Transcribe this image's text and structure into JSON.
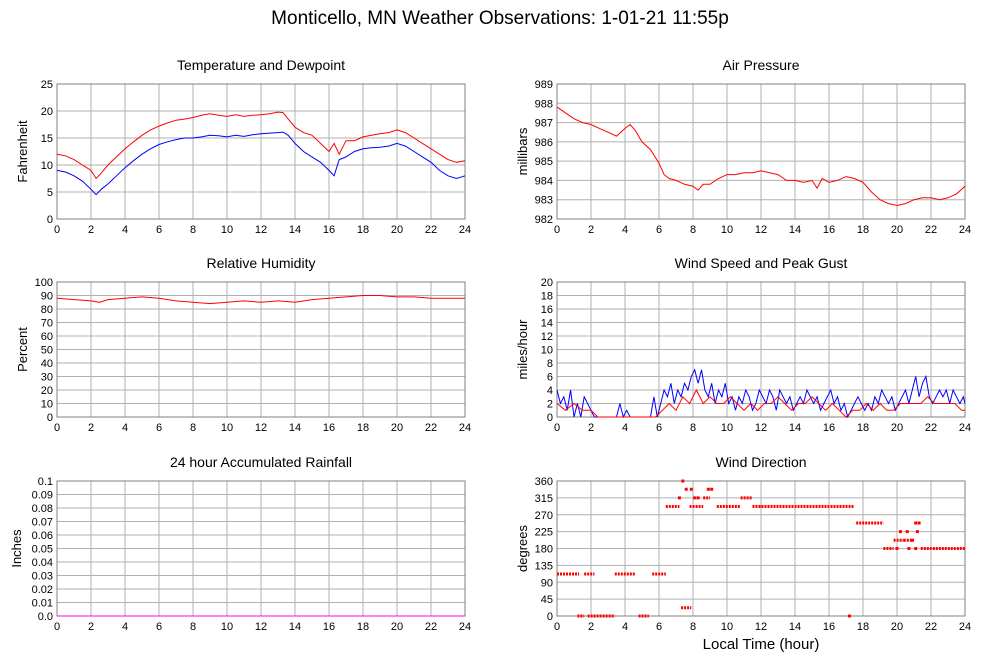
{
  "title": "Monticello, MN Weather Observations: 1-01-21 11:55p",
  "xlabel": "Local Time (hour)",
  "colors": {
    "red": "#ff0000",
    "blue": "#0000ff",
    "grid": "#b0b0b0"
  },
  "chart_data": [
    {
      "id": "temp",
      "type": "line",
      "title": "Temperature and Dewpoint",
      "ylabel": "Fahrenheit",
      "xlim": [
        0,
        24
      ],
      "ylim": [
        0,
        25
      ],
      "xticks": [
        0,
        2,
        4,
        6,
        8,
        10,
        12,
        14,
        16,
        18,
        20,
        22,
        24
      ],
      "yticks": [
        0,
        5,
        10,
        15,
        20,
        25
      ],
      "grid": true,
      "series": [
        {
          "color": "#ff0000",
          "x": [
            0,
            0.5,
            1,
            1.5,
            2,
            2.3,
            2.6,
            3,
            3.5,
            4,
            4.5,
            5,
            5.5,
            6,
            6.5,
            7,
            7.5,
            8,
            8.5,
            9,
            9.5,
            10,
            10.5,
            11,
            11.5,
            12,
            12.5,
            13,
            13.3,
            13.6,
            14,
            14.5,
            15,
            15.5,
            16,
            16.3,
            16.6,
            17,
            17.5,
            18,
            18.5,
            19,
            19.5,
            20,
            20.5,
            21,
            21.5,
            22,
            22.5,
            23,
            23.5,
            24
          ],
          "y": [
            12,
            11.7,
            11,
            10,
            9,
            7.5,
            8.5,
            10,
            11.5,
            13,
            14.3,
            15.5,
            16.5,
            17.2,
            17.8,
            18.3,
            18.5,
            18.8,
            19.2,
            19.5,
            19.2,
            19,
            19.3,
            19,
            19.2,
            19.3,
            19.5,
            19.8,
            19.7,
            18.5,
            17,
            16,
            15.5,
            14,
            12.5,
            14,
            12,
            14.5,
            14.5,
            15.2,
            15.5,
            15.8,
            16,
            16.5,
            16,
            15,
            14,
            13,
            12,
            11,
            10.5,
            10.8
          ]
        },
        {
          "color": "#0000ff",
          "x": [
            0,
            0.5,
            1,
            1.5,
            2,
            2.3,
            2.6,
            3,
            3.5,
            4,
            4.5,
            5,
            5.5,
            6,
            6.5,
            7,
            7.5,
            8,
            8.5,
            9,
            9.5,
            10,
            10.5,
            11,
            11.5,
            12,
            12.5,
            13,
            13.3,
            13.6,
            14,
            14.5,
            15,
            15.5,
            16,
            16.3,
            16.6,
            17,
            17.5,
            18,
            18.5,
            19,
            19.5,
            20,
            20.5,
            21,
            21.5,
            22,
            22.5,
            23,
            23.5,
            24
          ],
          "y": [
            9,
            8.7,
            8,
            7,
            5.5,
            4.5,
            5.5,
            6.5,
            8,
            9.5,
            10.8,
            12,
            13,
            13.8,
            14.3,
            14.7,
            15,
            15,
            15.2,
            15.5,
            15.4,
            15.2,
            15.5,
            15.3,
            15.6,
            15.8,
            15.9,
            16,
            16.1,
            15.5,
            14,
            12.5,
            11.5,
            10.5,
            9,
            8,
            11,
            11.5,
            12.5,
            13,
            13.2,
            13.3,
            13.5,
            14,
            13.5,
            12.5,
            11.5,
            10.5,
            9,
            8,
            7.5,
            8
          ]
        }
      ]
    },
    {
      "id": "pressure",
      "type": "line",
      "title": "Air Pressure",
      "ylabel": "millibars",
      "xlim": [
        0,
        24
      ],
      "ylim": [
        982,
        989
      ],
      "xticks": [
        0,
        2,
        4,
        6,
        8,
        10,
        12,
        14,
        16,
        18,
        20,
        22,
        24
      ],
      "yticks": [
        982,
        983,
        984,
        985,
        986,
        987,
        988,
        989
      ],
      "grid": true,
      "series": [
        {
          "color": "#ff0000",
          "x": [
            0,
            0.5,
            1,
            1.5,
            2,
            2.5,
            3,
            3.5,
            4,
            4.3,
            4.6,
            5,
            5.5,
            6,
            6.3,
            6.6,
            7,
            7.5,
            8,
            8.3,
            8.6,
            9,
            9.5,
            10,
            10.5,
            11,
            11.5,
            12,
            12.5,
            13,
            13.5,
            14,
            14.5,
            15,
            15.3,
            15.6,
            16,
            16.5,
            17,
            17.5,
            18,
            18.5,
            19,
            19.5,
            20,
            20.5,
            21,
            21.5,
            22,
            22.5,
            23,
            23.5,
            24
          ],
          "y": [
            987.8,
            987.5,
            987.2,
            987.0,
            986.9,
            986.7,
            986.5,
            986.3,
            986.7,
            986.9,
            986.6,
            986.0,
            985.6,
            984.9,
            984.3,
            984.1,
            984.0,
            983.8,
            983.7,
            983.5,
            983.8,
            983.8,
            984.1,
            984.3,
            984.3,
            984.4,
            984.4,
            984.5,
            984.4,
            984.3,
            984.0,
            984.0,
            983.9,
            984.0,
            983.6,
            984.1,
            983.9,
            984.0,
            984.2,
            984.1,
            983.9,
            983.4,
            983.0,
            982.8,
            982.7,
            982.8,
            983.0,
            983.1,
            983.1,
            983.0,
            983.1,
            983.3,
            983.7
          ]
        }
      ]
    },
    {
      "id": "humidity",
      "type": "line",
      "title": "Relative Humidity",
      "ylabel": "Percent",
      "xlim": [
        0,
        24
      ],
      "ylim": [
        0,
        100
      ],
      "xticks": [
        0,
        2,
        4,
        6,
        8,
        10,
        12,
        14,
        16,
        18,
        20,
        22,
        24
      ],
      "yticks": [
        0,
        10,
        20,
        30,
        40,
        50,
        60,
        70,
        80,
        90,
        100
      ],
      "grid": true,
      "series": [
        {
          "color": "#ff0000",
          "x": [
            0,
            1,
            2,
            2.5,
            3,
            4,
            5,
            6,
            7,
            8,
            9,
            10,
            11,
            12,
            13,
            14,
            15,
            16,
            17,
            18,
            19,
            20,
            21,
            22,
            23,
            24
          ],
          "y": [
            88,
            87,
            86,
            85,
            87,
            88,
            89,
            88,
            86,
            85,
            84,
            85,
            86,
            85,
            86,
            85,
            87,
            88,
            89,
            90,
            90,
            89,
            89,
            88,
            88,
            88
          ]
        }
      ]
    },
    {
      "id": "wind",
      "type": "line",
      "title": "Wind Speed and Peak Gust",
      "ylabel": "miles/hour",
      "xlim": [
        0,
        24
      ],
      "ylim": [
        0,
        20
      ],
      "xticks": [
        0,
        2,
        4,
        6,
        8,
        10,
        12,
        14,
        16,
        18,
        20,
        22,
        24
      ],
      "yticks": [
        0,
        2,
        4,
        6,
        8,
        10,
        12,
        14,
        16,
        18,
        20
      ],
      "grid": true,
      "series": [
        {
          "color": "#0000ff",
          "x": [
            0,
            0.2,
            0.4,
            0.6,
            0.8,
            1.0,
            1.2,
            1.4,
            1.6,
            1.8,
            2.0,
            2.2,
            2.4,
            3.5,
            3.7,
            3.9,
            4.1,
            4.3,
            5.5,
            5.7,
            5.9,
            6.1,
            6.3,
            6.5,
            6.7,
            6.9,
            7.1,
            7.3,
            7.5,
            7.7,
            7.9,
            8.1,
            8.3,
            8.5,
            8.7,
            8.9,
            9.1,
            9.3,
            9.5,
            9.7,
            9.9,
            10.1,
            10.3,
            10.5,
            10.7,
            10.9,
            11.1,
            11.3,
            11.5,
            11.7,
            11.9,
            12.1,
            12.3,
            12.5,
            12.7,
            12.9,
            13.1,
            13.3,
            13.5,
            13.7,
            13.9,
            14.1,
            14.3,
            14.5,
            14.7,
            14.9,
            15.1,
            15.3,
            15.5,
            15.7,
            15.9,
            16.1,
            16.3,
            16.5,
            16.7,
            16.9,
            17.1,
            17.3,
            17.5,
            17.7,
            17.9,
            18.1,
            18.3,
            18.5,
            18.7,
            18.9,
            19.1,
            19.3,
            19.5,
            19.7,
            19.9,
            20.1,
            20.3,
            20.5,
            20.7,
            20.9,
            21.1,
            21.3,
            21.5,
            21.7,
            21.9,
            22.1,
            22.3,
            22.5,
            22.7,
            22.9,
            23.1,
            23.3,
            23.5,
            23.7,
            23.9,
            24
          ],
          "y": [
            4,
            2,
            3,
            1,
            4,
            0,
            2,
            0,
            3,
            2,
            1,
            0,
            0,
            0,
            2,
            0,
            1,
            0,
            0,
            3,
            0,
            2,
            4,
            3,
            5,
            2,
            4,
            3,
            5,
            4,
            6,
            7,
            5,
            7,
            4,
            3,
            5,
            2,
            4,
            3,
            5,
            2,
            3,
            1,
            3,
            2,
            4,
            3,
            1,
            2,
            4,
            3,
            2,
            4,
            3,
            1,
            4,
            3,
            2,
            3,
            1,
            2,
            3,
            2,
            4,
            3,
            2,
            3,
            1,
            2,
            3,
            4,
            2,
            3,
            1,
            2,
            0,
            1,
            2,
            3,
            2,
            1,
            2,
            1,
            3,
            2,
            4,
            3,
            2,
            3,
            1,
            2,
            3,
            4,
            2,
            4,
            6,
            3,
            5,
            6,
            3,
            2,
            3,
            4,
            3,
            4,
            2,
            4,
            3,
            2,
            3,
            2
          ]
        },
        {
          "color": "#ff0000",
          "x": [
            0,
            0.5,
            1,
            1.5,
            2,
            2.4,
            3.8,
            4.2,
            5.8,
            6.2,
            6.6,
            7,
            7.4,
            7.8,
            8.2,
            8.6,
            9,
            9.4,
            9.8,
            10.2,
            10.6,
            11,
            11.4,
            11.8,
            12.2,
            12.6,
            13,
            13.4,
            13.8,
            14.2,
            14.6,
            15,
            15.4,
            15.8,
            16.2,
            16.6,
            17,
            17.4,
            17.8,
            18.2,
            18.6,
            19,
            19.4,
            19.8,
            20.2,
            20.6,
            21,
            21.4,
            21.8,
            22.2,
            22.6,
            23,
            23.4,
            23.8,
            24
          ],
          "y": [
            2,
            1,
            2,
            1,
            1,
            0,
            0,
            0,
            0,
            1,
            2,
            1,
            3,
            2,
            4,
            2,
            3,
            2,
            2,
            3,
            2,
            1,
            2,
            1,
            2,
            2,
            3,
            2,
            1,
            2,
            2,
            3,
            2,
            1,
            2,
            1,
            0,
            1,
            1,
            2,
            1,
            2,
            1,
            1,
            2,
            2,
            2,
            2,
            3,
            2,
            2,
            2,
            2,
            1,
            1
          ]
        }
      ]
    },
    {
      "id": "rain",
      "type": "line",
      "title": "24 hour Accumulated Rainfall",
      "ylabel": "Inches",
      "xlim": [
        0,
        24
      ],
      "ylim": [
        0,
        0.1
      ],
      "xticks": [
        0,
        2,
        4,
        6,
        8,
        10,
        12,
        14,
        16,
        18,
        20,
        22,
        24
      ],
      "yticks": [
        "0.0",
        "0.01",
        "0.02",
        "0.03",
        "0.04",
        "0.05",
        "0.06",
        "0.07",
        "0.08",
        "0.09",
        "0.1"
      ],
      "grid": true,
      "series": [
        {
          "color": "#ff00ff",
          "x": [
            0,
            24
          ],
          "y": [
            0,
            0
          ]
        }
      ]
    },
    {
      "id": "direction",
      "type": "scatter",
      "title": "Wind Direction",
      "ylabel": "degrees",
      "xlim": [
        0,
        24
      ],
      "ylim": [
        0,
        360
      ],
      "xticks": [
        0,
        2,
        4,
        6,
        8,
        10,
        12,
        14,
        16,
        18,
        20,
        22,
        24
      ],
      "yticks": [
        0,
        45,
        90,
        135,
        180,
        225,
        270,
        315,
        360
      ],
      "grid": true,
      "series": [
        {
          "color": "#ff0000",
          "segments": [
            [
              0,
              1.3,
              112
            ],
            [
              1.6,
              2.2,
              112
            ],
            [
              3.4,
              4.6,
              112
            ],
            [
              5.6,
              6.4,
              112
            ],
            [
              1.2,
              1.6,
              0
            ],
            [
              1.8,
              3.4,
              0
            ],
            [
              4.8,
              5.4,
              0
            ],
            [
              6.4,
              7.2,
              292
            ],
            [
              7.8,
              8.6,
              292
            ],
            [
              8.6,
              9.0,
              315
            ],
            [
              9.4,
              10.8,
              292
            ],
            [
              10.8,
              11.5,
              315
            ],
            [
              11.5,
              17.5,
              292
            ],
            [
              17.6,
              19.2,
              248
            ],
            [
              19.2,
              19.8,
              180
            ],
            [
              19.8,
              20.4,
              202
            ],
            [
              20.4,
              21.0,
              202
            ],
            [
              21.4,
              24,
              180
            ],
            [
              7.3,
              7.9,
              22
            ]
          ],
          "points": [
            [
              7.4,
              360
            ],
            [
              7.6,
              338
            ],
            [
              7.9,
              338
            ],
            [
              7.2,
              315
            ],
            [
              8.1,
              315
            ],
            [
              8.3,
              315
            ],
            [
              8.9,
              338
            ],
            [
              9.1,
              338
            ],
            [
              20.2,
              225
            ],
            [
              20.6,
              225
            ],
            [
              20.9,
              202
            ],
            [
              21.1,
              248
            ],
            [
              21.3,
              248
            ],
            [
              21.2,
              225
            ],
            [
              20.0,
              180
            ],
            [
              20.7,
              180
            ],
            [
              21.1,
              180
            ],
            [
              17.2,
              0
            ]
          ]
        }
      ]
    }
  ]
}
